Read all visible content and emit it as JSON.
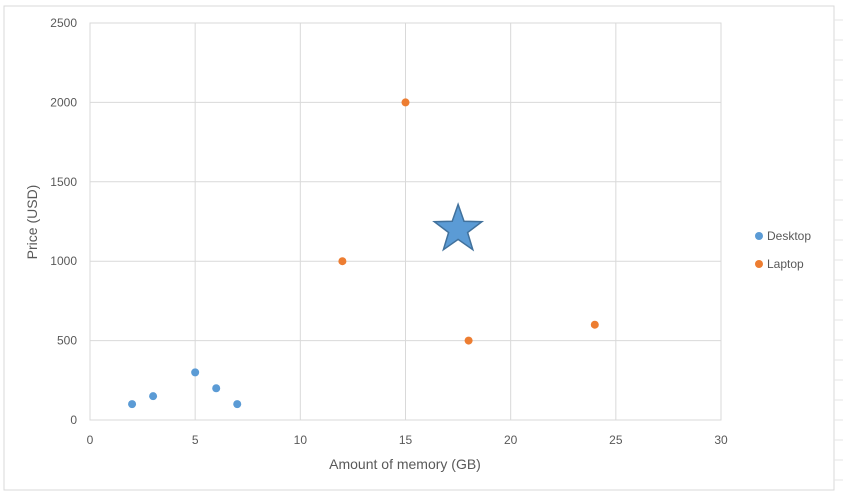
{
  "chart_data": {
    "type": "scatter",
    "title": "",
    "xlabel": "Amount of memory (GB)",
    "ylabel": "Price (USD)",
    "xlim": [
      0,
      30
    ],
    "ylim": [
      0,
      2500
    ],
    "x_ticks": [
      0,
      5,
      10,
      15,
      20,
      25,
      30
    ],
    "y_ticks": [
      0,
      500,
      1000,
      1500,
      2000,
      2500
    ],
    "grid": true,
    "legend_position": "right",
    "series": [
      {
        "name": "Desktop",
        "color": "#5b9bd5",
        "points": [
          {
            "x": 2,
            "y": 100
          },
          {
            "x": 3,
            "y": 150
          },
          {
            "x": 5,
            "y": 300
          },
          {
            "x": 6,
            "y": 200
          },
          {
            "x": 7,
            "y": 100
          }
        ]
      },
      {
        "name": "Laptop",
        "color": "#ed7d31",
        "points": [
          {
            "x": 12,
            "y": 1000
          },
          {
            "x": 15,
            "y": 2000
          },
          {
            "x": 18,
            "y": 500
          },
          {
            "x": 24,
            "y": 600
          }
        ]
      }
    ],
    "annotations": [
      {
        "type": "star-marker",
        "x": 17.5,
        "y": 1200,
        "color": "#5b9bd5"
      }
    ]
  }
}
